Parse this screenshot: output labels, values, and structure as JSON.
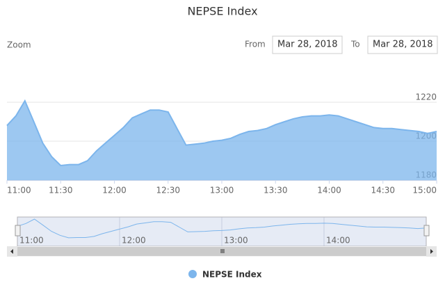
{
  "chart_data": {
    "type": "area",
    "title": "NEPSE Index",
    "zoom_label": "Zoom",
    "from_label": "From",
    "from_date": "Mar 28, 2018",
    "to_label": "To",
    "to_date": "Mar 28, 2018",
    "x": [
      "11:00",
      "11:05",
      "11:10",
      "11:15",
      "11:20",
      "11:25",
      "11:30",
      "11:35",
      "11:40",
      "11:45",
      "11:50",
      "11:55",
      "12:00",
      "12:05",
      "12:10",
      "12:15",
      "12:20",
      "12:25",
      "12:30",
      "12:35",
      "12:40",
      "12:45",
      "12:50",
      "12:55",
      "13:00",
      "13:05",
      "13:10",
      "13:15",
      "13:20",
      "13:25",
      "13:30",
      "13:35",
      "13:40",
      "13:45",
      "13:50",
      "13:55",
      "14:00",
      "14:05",
      "14:10",
      "14:15",
      "14:20",
      "14:25",
      "14:30",
      "14:35",
      "14:40",
      "14:45",
      "14:50",
      "14:55",
      "15:00"
    ],
    "series": [
      {
        "name": "NEPSE Index",
        "color": "#7cb5ec",
        "values": [
          1208,
          1213,
          1220.7,
          1210,
          1199,
          1192,
          1187.5,
          1188,
          1188,
          1190,
          1195,
          1199,
          1203,
          1207,
          1212,
          1214,
          1216,
          1216,
          1215,
          1206.5,
          1198,
          1198.5,
          1199,
          1200,
          1200.5,
          1201.5,
          1203.5,
          1205,
          1205.5,
          1206.5,
          1208.5,
          1210,
          1211.5,
          1212.5,
          1213,
          1213,
          1213.5,
          1213,
          1211.5,
          1210,
          1208.5,
          1207,
          1206.5,
          1206.5,
          1206,
          1205.5,
          1205,
          1204,
          1205
        ]
      }
    ],
    "xlim": [
      "11:00",
      "15:00"
    ],
    "xticks": [
      "11:00",
      "11:30",
      "12:00",
      "12:30",
      "13:00",
      "13:30",
      "14:00",
      "14:30",
      "15:00"
    ],
    "navigator_ticks": [
      "11:00",
      "12:00",
      "13:00",
      "14:00"
    ],
    "ylim": [
      1180,
      1240
    ],
    "yticks": [
      1180,
      1200,
      1220
    ],
    "grid": true,
    "legend": "bottom"
  }
}
